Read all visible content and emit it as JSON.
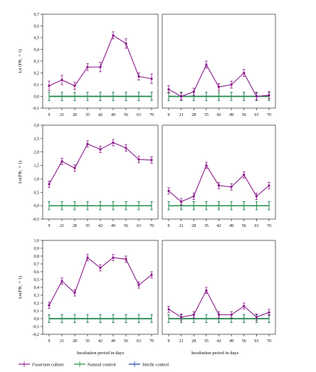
{
  "colors": {
    "fusarium": "#8b1a8b",
    "natural": "#1f8f3a",
    "sterile": "#1f3fa0",
    "axis": "#000000"
  },
  "legend": {
    "fusarium_italic": "Fusarium",
    "fusarium_rest": " culture",
    "natural": "Natural control",
    "sterile": "Sterile control"
  },
  "xlabel": "Incubation period in days",
  "chart_data": [
    {
      "type": "line",
      "row": 0,
      "col": 0,
      "ylabel": "Ln (FB₁ + 1)",
      "ylim": [
        -0.1,
        0.7
      ],
      "yticks": [
        "0,7",
        "0,6",
        "0,5",
        "0,4",
        "0,3",
        "0,2",
        "0,1",
        "0,0",
        "-0,1"
      ],
      "categories": [
        "9",
        "21",
        "28",
        "35",
        "42",
        "49",
        "56",
        "63",
        "70"
      ],
      "series": [
        {
          "name": "Fusarium culture",
          "values": [
            0.09,
            0.14,
            0.09,
            0.25,
            0.25,
            0.52,
            0.45,
            0.17,
            0.15
          ],
          "err": [
            0.04,
            0.04,
            0.03,
            0.03,
            0.04,
            0.03,
            0.04,
            0.03,
            0.04
          ]
        },
        {
          "name": "Natural control",
          "values": [
            0,
            0,
            0,
            0,
            0,
            0,
            0,
            0,
            0
          ],
          "err": [
            0.035,
            0.035,
            0.035,
            0.035,
            0.035,
            0.035,
            0.035,
            0.035,
            0.035
          ]
        },
        {
          "name": "Sterile control",
          "values": [
            0,
            0,
            0,
            0,
            0,
            0,
            0,
            0,
            0
          ],
          "err": [
            0.035,
            0.035,
            0.035,
            0.035,
            0.035,
            0.035,
            0.035,
            0.035,
            0.035
          ]
        }
      ]
    },
    {
      "type": "line",
      "row": 0,
      "col": 1,
      "ylabel": "",
      "ylim": [
        -0.1,
        0.7
      ],
      "yticks": [],
      "categories": [
        "9",
        "21",
        "28",
        "35",
        "42",
        "49",
        "56",
        "63",
        "70"
      ],
      "series": [
        {
          "name": "Fusarium culture",
          "values": [
            0.06,
            0.0,
            0.04,
            0.27,
            0.08,
            0.1,
            0.2,
            0.0,
            0.01
          ],
          "err": [
            0.03,
            0.03,
            0.03,
            0.03,
            0.03,
            0.03,
            0.03,
            0.03,
            0.03
          ]
        },
        {
          "name": "Natural control",
          "values": [
            0,
            0,
            0,
            0,
            0,
            0,
            0,
            0,
            0
          ],
          "err": [
            0.035,
            0.035,
            0.035,
            0.035,
            0.035,
            0.035,
            0.035,
            0.035,
            0.035
          ]
        },
        {
          "name": "Sterile control",
          "values": [
            0,
            0,
            0,
            0,
            0,
            0,
            0,
            0,
            0
          ],
          "err": [
            0.035,
            0.035,
            0.035,
            0.035,
            0.035,
            0.035,
            0.035,
            0.035,
            0.035
          ]
        }
      ]
    },
    {
      "type": "line",
      "row": 1,
      "col": 0,
      "ylabel": "Ln(FB₁ + 1)",
      "ylim": [
        -0.5,
        3.0
      ],
      "yticks": [
        "3,0",
        "2,5",
        "2,0",
        "1,5",
        "1,0",
        "0,5",
        "0,0",
        "-0,5"
      ],
      "categories": [
        "9",
        "21",
        "28",
        "35",
        "42",
        "49",
        "56",
        "63",
        "70"
      ],
      "series": [
        {
          "name": "Fusarium culture",
          "values": [
            0.8,
            1.65,
            1.4,
            2.3,
            2.1,
            2.35,
            2.15,
            1.72,
            1.7
          ],
          "err": [
            0.12,
            0.12,
            0.12,
            0.12,
            0.12,
            0.12,
            0.12,
            0.12,
            0.12
          ]
        },
        {
          "name": "Natural control",
          "values": [
            0,
            0,
            0,
            0,
            0,
            0,
            0,
            0,
            0
          ],
          "err": [
            0.15,
            0.15,
            0.15,
            0.15,
            0.15,
            0.15,
            0.15,
            0.15,
            0.15
          ]
        },
        {
          "name": "Sterile control",
          "values": [
            0,
            0,
            0,
            0,
            0,
            0,
            0,
            0,
            0
          ],
          "err": [
            0.15,
            0.15,
            0.15,
            0.15,
            0.15,
            0.15,
            0.15,
            0.15,
            0.15
          ]
        }
      ]
    },
    {
      "type": "line",
      "row": 1,
      "col": 1,
      "ylabel": "",
      "ylim": [
        -0.5,
        3.0
      ],
      "yticks": [],
      "categories": [
        "9",
        "21",
        "28",
        "35",
        "42",
        "49",
        "56",
        "63",
        "70"
      ],
      "series": [
        {
          "name": "Fusarium culture",
          "values": [
            0.55,
            0.15,
            0.35,
            1.5,
            0.75,
            0.7,
            1.15,
            0.35,
            0.75
          ],
          "err": [
            0.12,
            0.12,
            0.12,
            0.12,
            0.12,
            0.12,
            0.12,
            0.12,
            0.12
          ]
        },
        {
          "name": "Natural control",
          "values": [
            0,
            0,
            0,
            0,
            0,
            0,
            0,
            0,
            0
          ],
          "err": [
            0.15,
            0.15,
            0.15,
            0.15,
            0.15,
            0.15,
            0.15,
            0.15,
            0.15
          ]
        },
        {
          "name": "Sterile control",
          "values": [
            0,
            0,
            0,
            0,
            0,
            0,
            0,
            0,
            0
          ],
          "err": [
            0.15,
            0.15,
            0.15,
            0.15,
            0.15,
            0.15,
            0.15,
            0.15,
            0.15
          ]
        }
      ]
    },
    {
      "type": "line",
      "row": 2,
      "col": 0,
      "ylabel": "Ln(FB₁ + 1)",
      "ylim": [
        -0.2,
        1.0
      ],
      "yticks": [
        "1,0",
        "0,9",
        "0,8",
        "0,7",
        "0,6",
        "0,5",
        "0,4",
        "0,3",
        "0,2",
        "0,1",
        "0,0",
        "-0,1",
        "-0,2"
      ],
      "categories": [
        "9",
        "21",
        "28",
        "35",
        "42",
        "49",
        "56",
        "63",
        "70"
      ],
      "series": [
        {
          "name": "Fusarium culture",
          "values": [
            0.17,
            0.48,
            0.33,
            0.78,
            0.65,
            0.78,
            0.76,
            0.43,
            0.56
          ],
          "err": [
            0.04,
            0.04,
            0.04,
            0.04,
            0.04,
            0.04,
            0.04,
            0.04,
            0.04
          ]
        },
        {
          "name": "Natural control",
          "values": [
            0,
            0,
            0,
            0,
            0,
            0,
            0,
            0,
            0
          ],
          "err": [
            0.05,
            0.05,
            0.05,
            0.05,
            0.05,
            0.05,
            0.05,
            0.05,
            0.05
          ]
        },
        {
          "name": "Sterile control",
          "values": [
            0,
            0,
            0,
            0,
            0,
            0,
            0,
            0,
            0
          ],
          "err": [
            0.05,
            0.05,
            0.05,
            0.05,
            0.05,
            0.05,
            0.05,
            0.05,
            0.05
          ]
        }
      ]
    },
    {
      "type": "line",
      "row": 2,
      "col": 1,
      "ylabel": "",
      "ylim": [
        -0.2,
        1.0
      ],
      "yticks": [],
      "categories": [
        "9",
        "21",
        "28",
        "35",
        "42",
        "49",
        "56",
        "63",
        "70"
      ],
      "series": [
        {
          "name": "Fusarium culture",
          "values": [
            0.12,
            0.02,
            0.05,
            0.36,
            0.05,
            0.05,
            0.16,
            0.02,
            0.08
          ],
          "err": [
            0.04,
            0.04,
            0.04,
            0.04,
            0.04,
            0.04,
            0.04,
            0.04,
            0.04
          ]
        },
        {
          "name": "Natural control",
          "values": [
            0,
            0,
            0,
            0,
            0,
            0,
            0,
            0,
            0
          ],
          "err": [
            0.05,
            0.05,
            0.05,
            0.05,
            0.05,
            0.05,
            0.05,
            0.05,
            0.05
          ]
        },
        {
          "name": "Sterile control",
          "values": [
            0,
            0,
            0,
            0,
            0,
            0,
            0,
            0,
            0
          ],
          "err": [
            0.05,
            0.05,
            0.05,
            0.05,
            0.05,
            0.05,
            0.05,
            0.05,
            0.05
          ]
        }
      ]
    }
  ]
}
